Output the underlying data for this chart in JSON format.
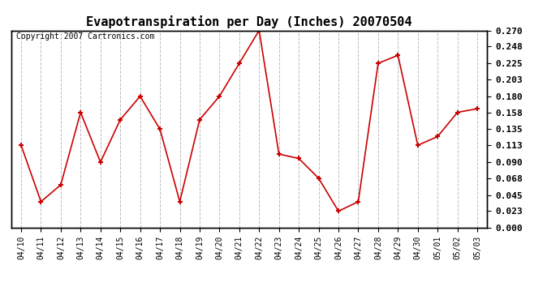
{
  "title": "Evapotranspiration per Day (Inches) 20070504",
  "copyright": "Copyright 2007 Cartronics.com",
  "dates": [
    "04/10",
    "04/11",
    "04/12",
    "04/13",
    "04/14",
    "04/15",
    "04/16",
    "04/17",
    "04/18",
    "04/19",
    "04/20",
    "04/21",
    "04/22",
    "04/23",
    "04/24",
    "04/25",
    "04/26",
    "04/27",
    "04/28",
    "04/29",
    "04/30",
    "05/01",
    "05/02",
    "05/03"
  ],
  "values": [
    0.113,
    0.036,
    0.059,
    0.158,
    0.09,
    0.148,
    0.18,
    0.135,
    0.036,
    0.148,
    0.18,
    0.225,
    0.27,
    0.101,
    0.095,
    0.068,
    0.023,
    0.036,
    0.225,
    0.236,
    0.113,
    0.125,
    0.158,
    0.163
  ],
  "line_color": "#cc0000",
  "marker_color": "#cc0000",
  "background_color": "#ffffff",
  "grid_color": "#bbbbbb",
  "ylim": [
    0.0,
    0.27
  ],
  "yticks": [
    0.0,
    0.023,
    0.045,
    0.068,
    0.09,
    0.113,
    0.135,
    0.158,
    0.18,
    0.203,
    0.225,
    0.248,
    0.27
  ],
  "title_fontsize": 11,
  "copyright_fontsize": 7
}
